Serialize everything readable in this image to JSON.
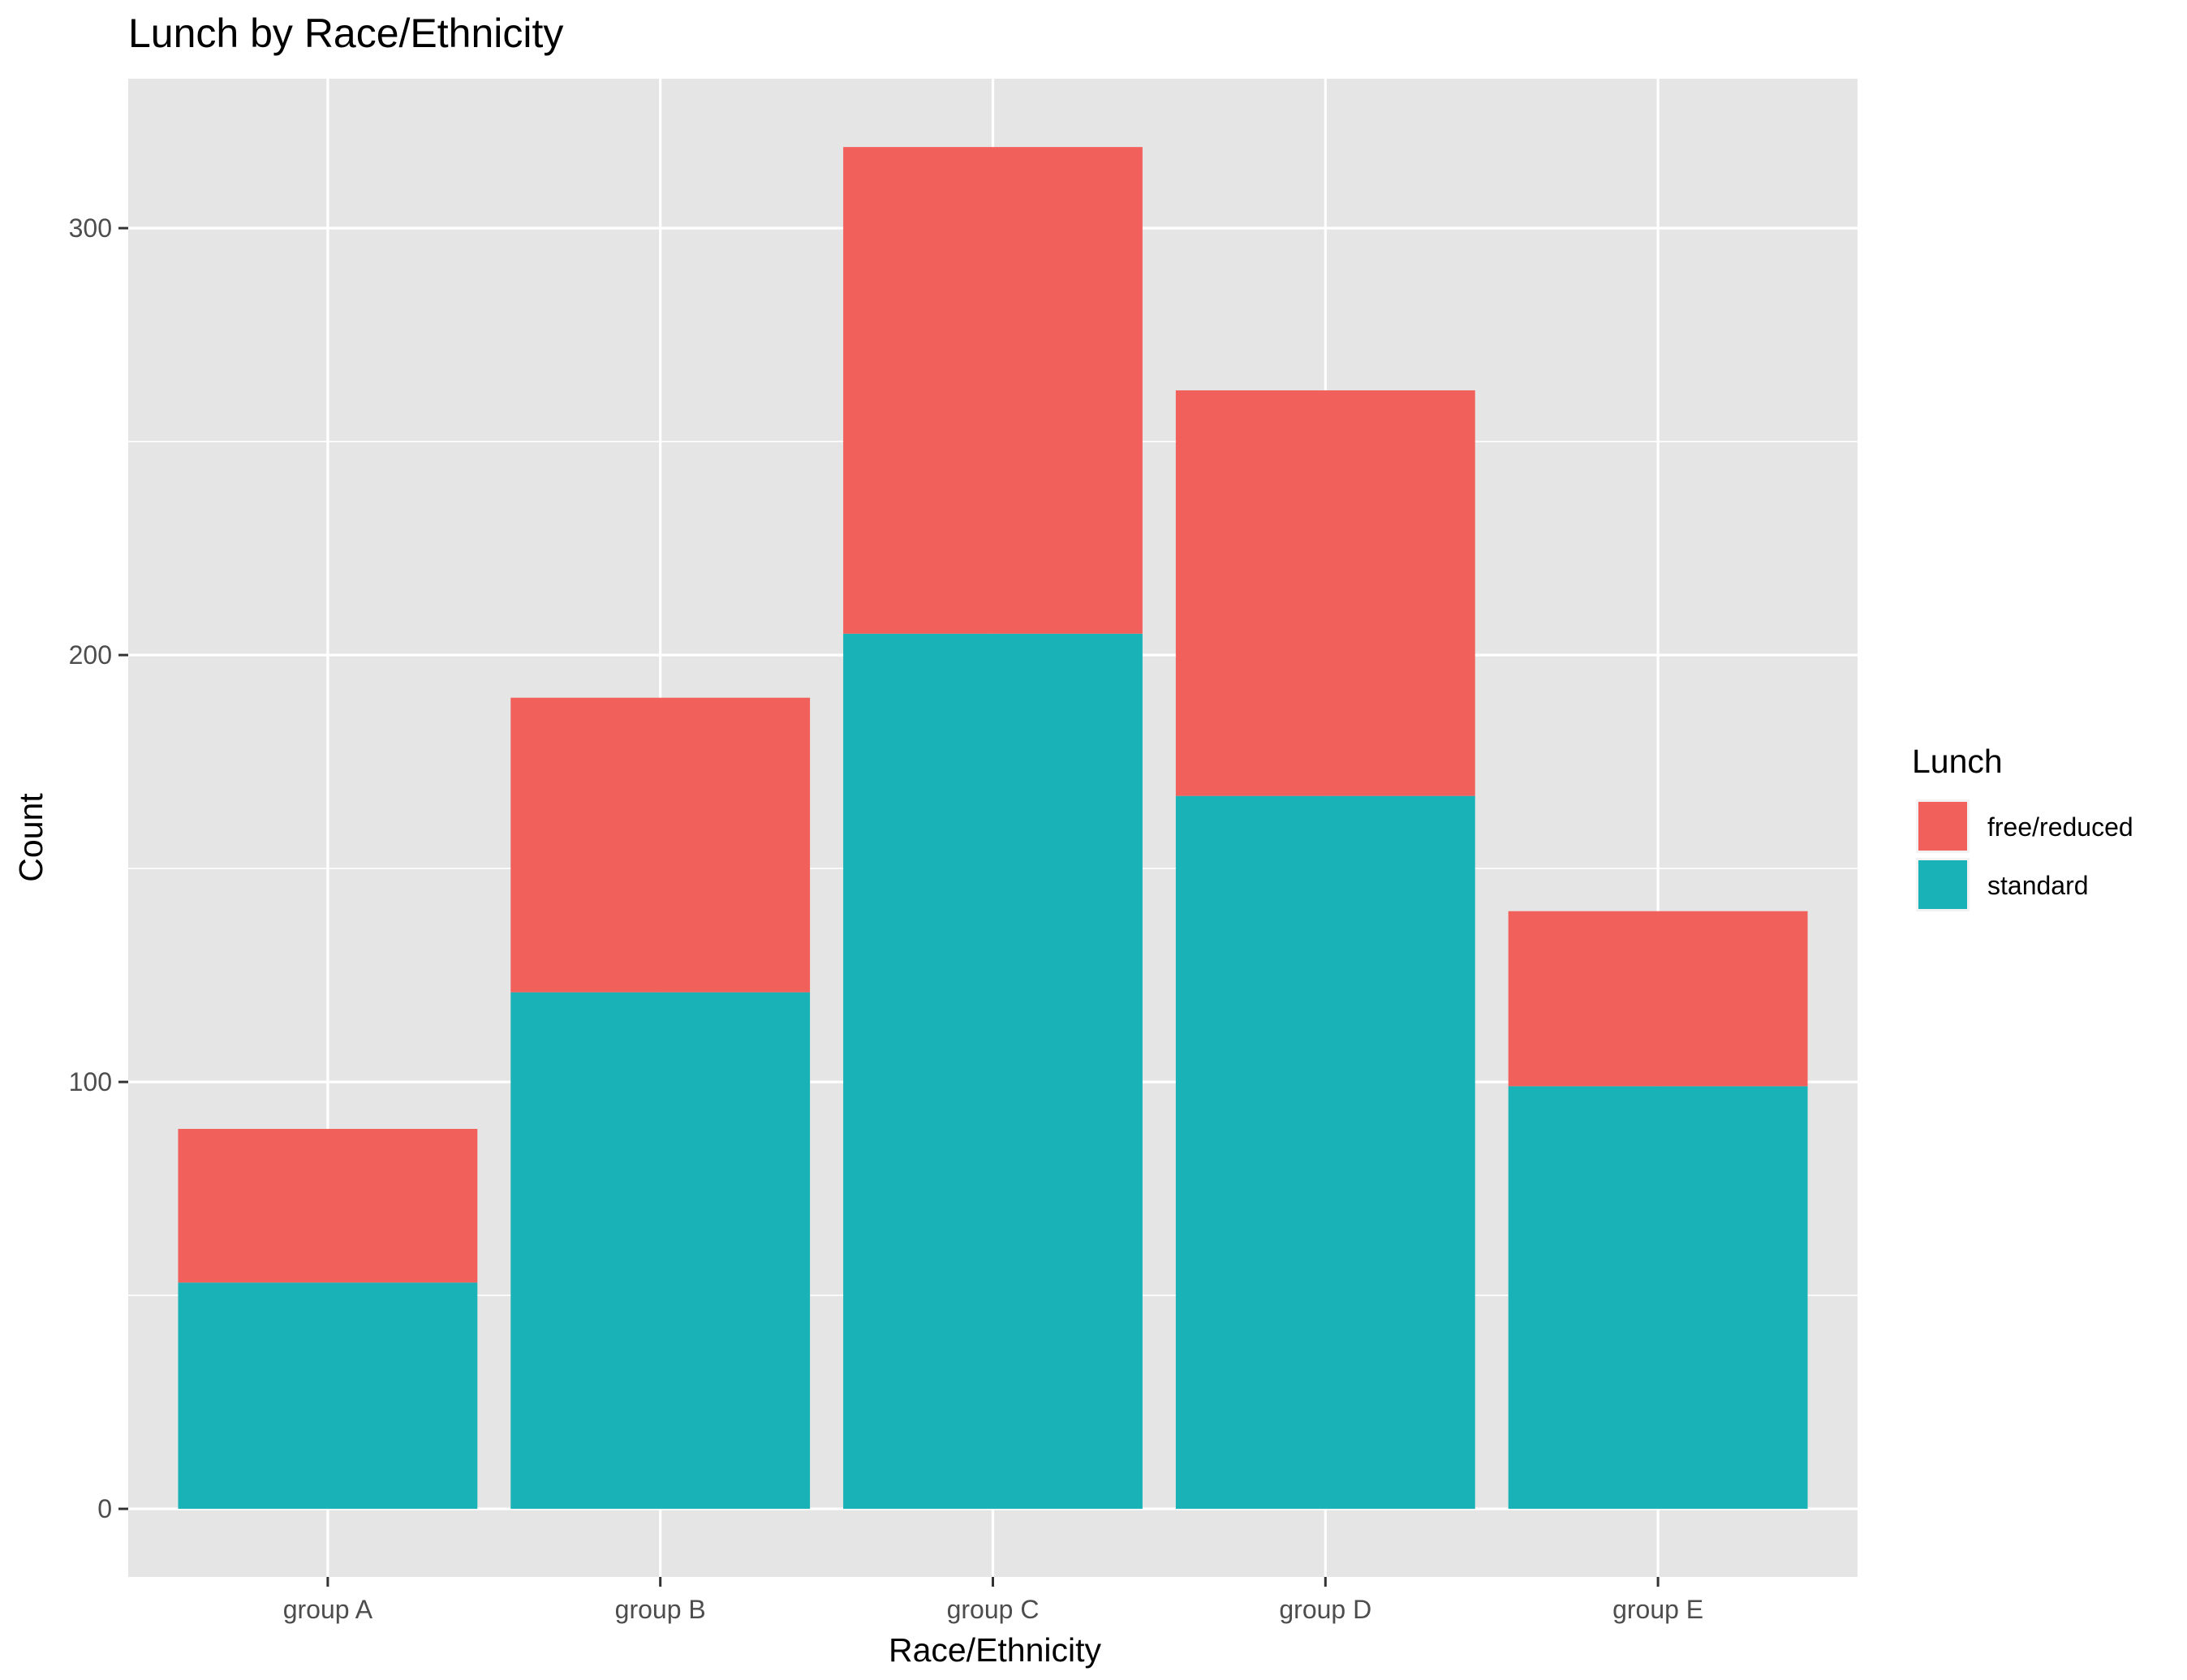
{
  "chart_data": {
    "type": "bar",
    "stacked": true,
    "title": "Lunch by Race/Ethnicity",
    "xlabel": "Race/Ethnicity",
    "ylabel": "Count",
    "categories": [
      "group A",
      "group B",
      "group C",
      "group D",
      "group E"
    ],
    "series": [
      {
        "name": "free/reduced",
        "color": "#F2605C",
        "values": [
          36,
          69,
          114,
          95,
          41
        ]
      },
      {
        "name": "standard",
        "color": "#19B2B6",
        "values": [
          53,
          121,
          205,
          167,
          99
        ]
      }
    ],
    "ylim": [
      -15.95,
      335
    ],
    "yticks": [
      0,
      100,
      200,
      300
    ],
    "grid": true,
    "legend": {
      "title": "Lunch",
      "placement": "right"
    },
    "background": "#E5E5E5"
  }
}
